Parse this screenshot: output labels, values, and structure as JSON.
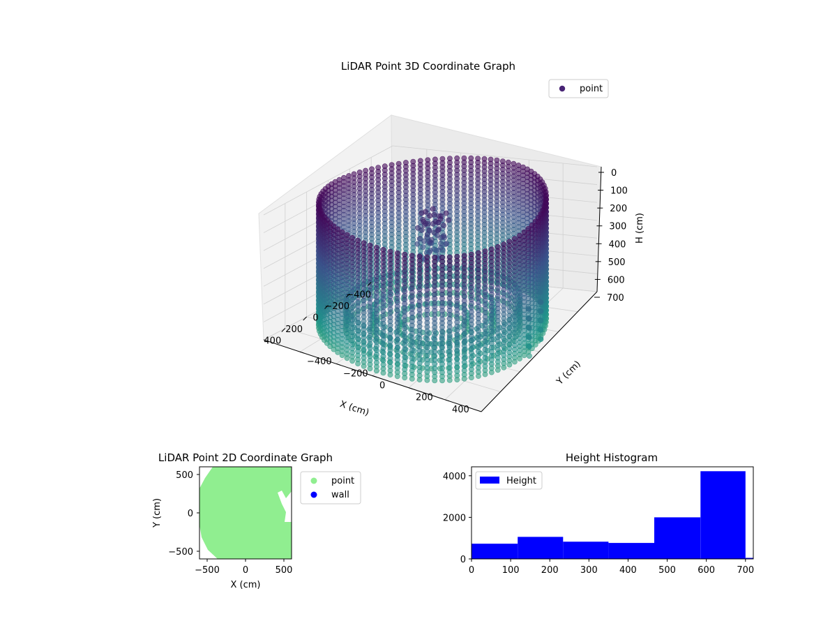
{
  "chart_data": [
    {
      "type": "scatter",
      "projection": "3d",
      "title": "LiDAR Point 3D Coordinate Graph",
      "xlabel": "X (cm)",
      "ylabel": "Y (cm)",
      "zlabel": "H (cm)",
      "x_ticks": [
        "−400",
        "−200",
        "0",
        "200",
        "400"
      ],
      "y_ticks": [
        "−400",
        "−200",
        "0",
        "200",
        "400"
      ],
      "z_ticks": [
        "0",
        "100",
        "200",
        "300",
        "400",
        "500",
        "600",
        "700"
      ],
      "xlim": [
        -600,
        600
      ],
      "ylim": [
        -600,
        600
      ],
      "zlim": [
        0,
        700
      ],
      "z_inverted": true,
      "legend": {
        "entries": [
          "point"
        ],
        "position": "top-right"
      },
      "series": [
        {
          "name": "point",
          "description": "cylindrical wall of points, radius ~560 cm, columns from H 0 to 700 with colour varying by height",
          "colormap": "viridis"
        }
      ],
      "grid": true
    },
    {
      "type": "scatter",
      "title": "LiDAR Point 2D Coordinate Graph",
      "xlabel": "X (cm)",
      "ylabel": "Y (cm)",
      "x_ticks": [
        "−500",
        "0",
        "500"
      ],
      "y_ticks": [
        "−500",
        "0",
        "500"
      ],
      "xlim": [
        -600,
        600
      ],
      "ylim": [
        -600,
        600
      ],
      "legend": {
        "entries": [
          "point",
          "wall"
        ],
        "position": "outside-right"
      },
      "series": [
        {
          "name": "point",
          "color": "#90ee90"
        },
        {
          "name": "wall",
          "color": "#0000ff"
        }
      ]
    },
    {
      "type": "bar",
      "subtype": "histogram",
      "title": "Height Histogram",
      "x_ticks": [
        "0",
        "100",
        "200",
        "300",
        "400",
        "500",
        "600",
        "700"
      ],
      "y_ticks": [
        "0",
        "2000",
        "4000"
      ],
      "xlim": [
        0,
        720
      ],
      "ylim": [
        0,
        4430
      ],
      "legend": {
        "entries": [
          "Height"
        ],
        "position": "top-left"
      },
      "series": [
        {
          "name": "Height",
          "color": "#0000ff",
          "bins": [
            {
              "x0": 0,
              "x1": 118,
              "count": 730
            },
            {
              "x0": 118,
              "x1": 234,
              "count": 1060
            },
            {
              "x0": 234,
              "x1": 350,
              "count": 830
            },
            {
              "x0": 350,
              "x1": 467,
              "count": 770
            },
            {
              "x0": 467,
              "x1": 585,
              "count": 2000
            },
            {
              "x0": 585,
              "x1": 700,
              "count": 4220
            },
            {
              "x0": 700,
              "x1": 720,
              "count": 50
            }
          ]
        }
      ]
    }
  ]
}
